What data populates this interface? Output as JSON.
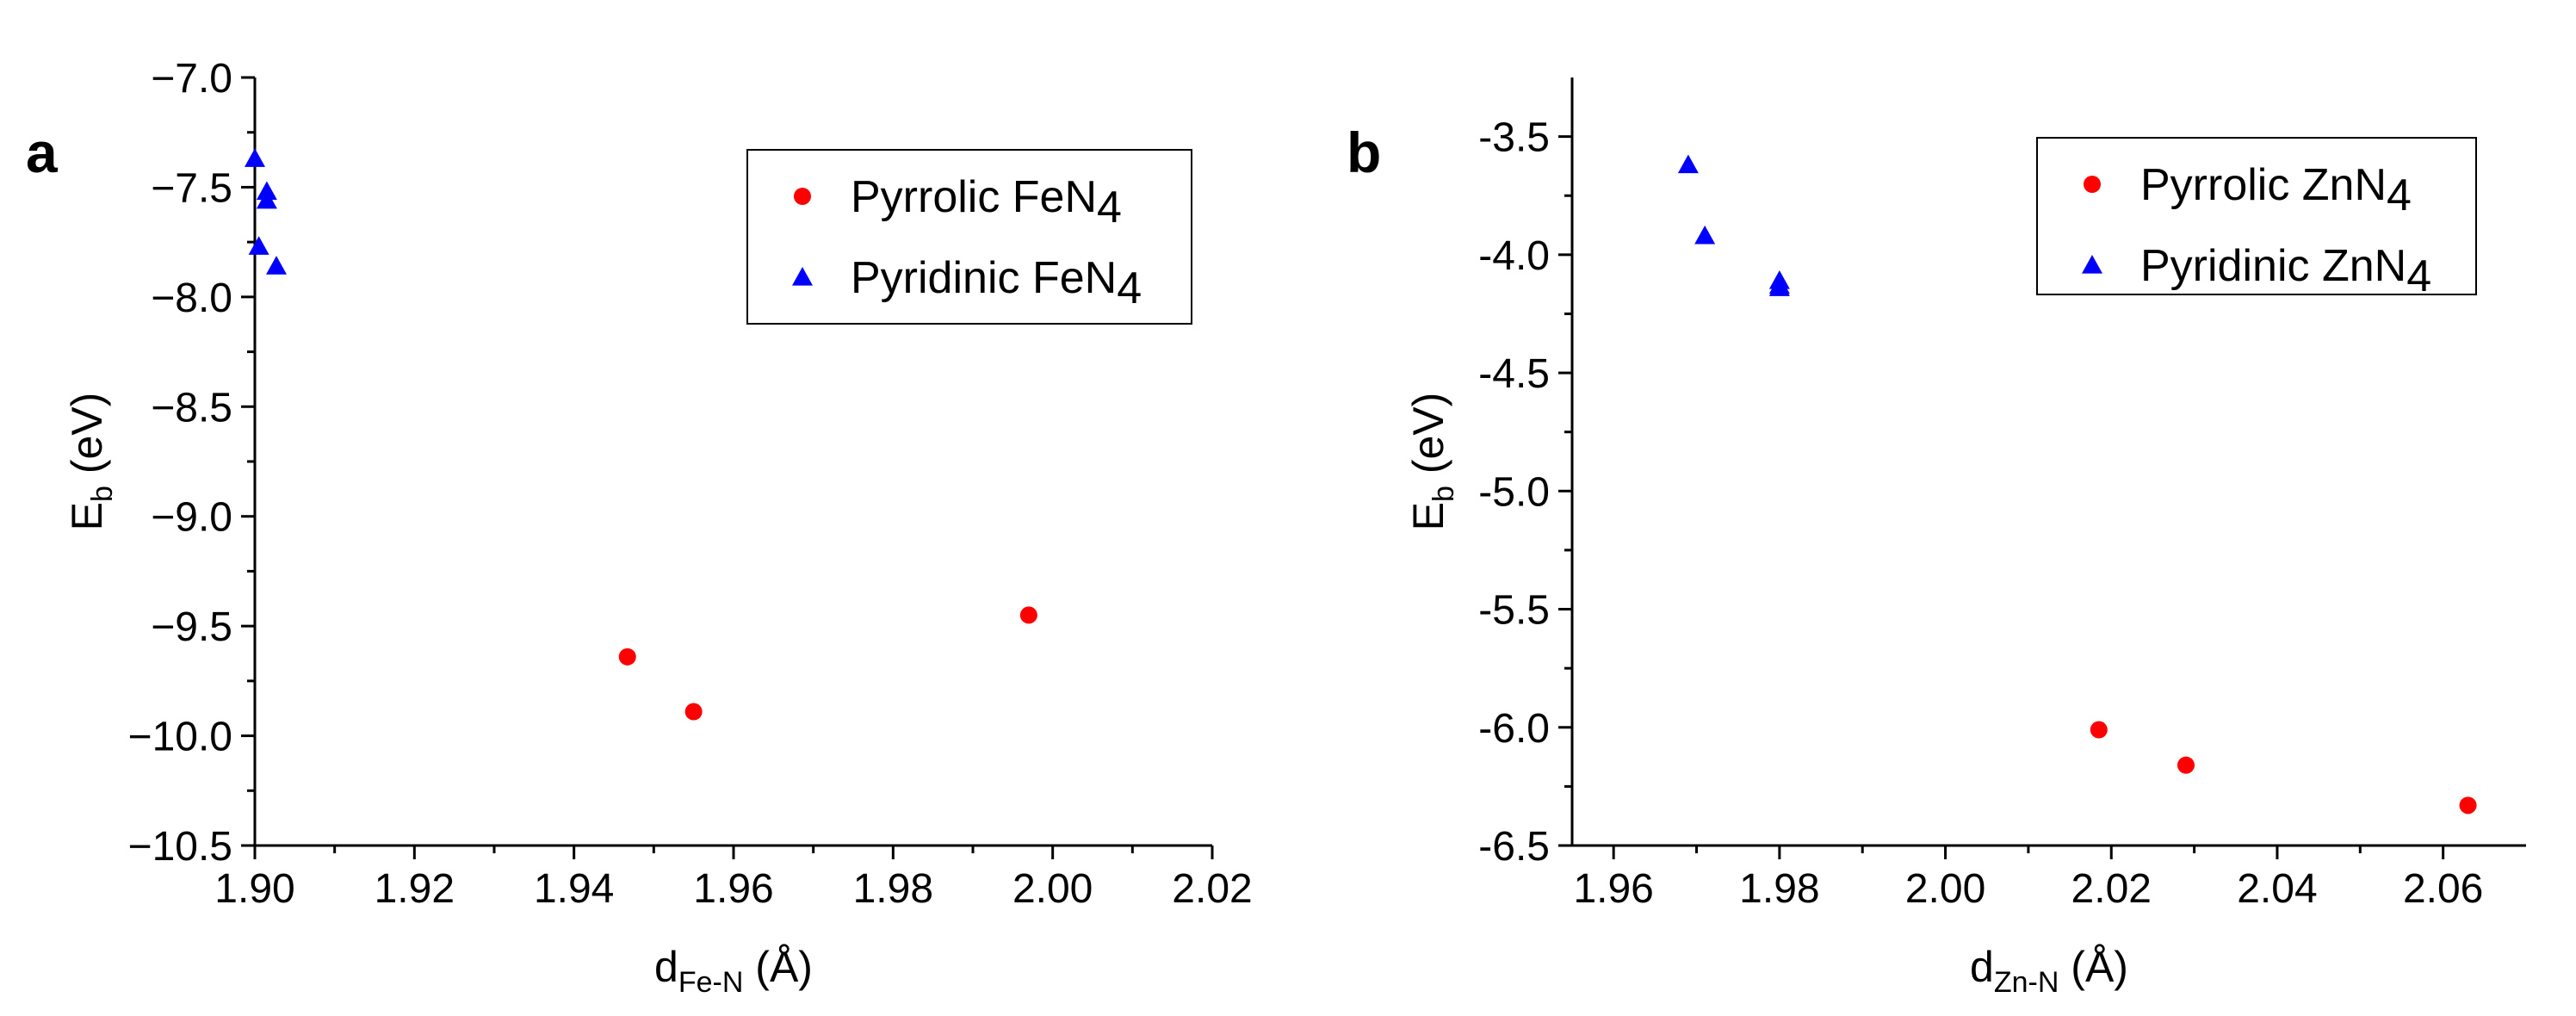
{
  "chart_data": [
    {
      "type": "scatter",
      "panel_label": "a",
      "xlabel": {
        "main": "d",
        "sub": "Fe-N",
        "unit": " (Å)"
      },
      "ylabel": {
        "main": "E",
        "sub": "b",
        "unit": " (eV)"
      },
      "xlim": [
        1.9,
        2.02
      ],
      "ylim": [
        -10.5,
        -7.0
      ],
      "xticks": [
        1.9,
        1.92,
        1.94,
        1.96,
        1.98,
        2.0,
        2.02
      ],
      "xtick_labels": [
        "1.90",
        "1.92",
        "1.94",
        "1.96",
        "1.98",
        "2.00",
        "2.02"
      ],
      "yticks": [
        -7.0,
        -7.5,
        -8.0,
        -8.5,
        -9.0,
        -9.5,
        -10.0,
        -10.5
      ],
      "ytick_labels": [
        "−7.0",
        "−7.5",
        "−8.0",
        "−8.5",
        "−9.0",
        "−9.5",
        "−10.0",
        "−10.5"
      ],
      "legend_position": "top-right",
      "grid": false,
      "series": [
        {
          "name": "Pyrrolic FeN4",
          "label": {
            "main": "Pyrrolic FeN",
            "sub": "4"
          },
          "marker": "circle",
          "color": "#ff0000",
          "points": [
            [
              1.9467,
              -9.64
            ],
            [
              1.955,
              -9.89
            ],
            [
              1.997,
              -9.45
            ]
          ]
        },
        {
          "name": "Pyridinic FeN4",
          "label": {
            "main": "Pyridinic FeN",
            "sub": "4"
          },
          "marker": "triangle",
          "color": "#0000ff",
          "points": [
            [
              1.9,
              -7.37
            ],
            [
              1.9015,
              -7.52
            ],
            [
              1.9015,
              -7.56
            ],
            [
              1.9005,
              -7.77
            ],
            [
              1.9027,
              -7.86
            ]
          ]
        }
      ]
    },
    {
      "type": "scatter",
      "panel_label": "b",
      "xlabel": {
        "main": "d",
        "sub": "Zn-N",
        "unit": " (Å)"
      },
      "ylabel": {
        "main": "E",
        "sub": "b",
        "unit": " (eV)"
      },
      "xlim": [
        1.955,
        2.07
      ],
      "ylim": [
        -6.5,
        -3.25
      ],
      "xticks": [
        1.96,
        1.98,
        2.0,
        2.02,
        2.04,
        2.06
      ],
      "xtick_labels": [
        "1.96",
        "1.98",
        "2.00",
        "2.02",
        "2.04",
        "2.06"
      ],
      "yticks": [
        -3.5,
        -4.0,
        -4.5,
        -5.0,
        -5.5,
        -6.0,
        -6.5
      ],
      "ytick_labels": [
        "-3.5",
        "-4.0",
        "-4.5",
        "-5.0",
        "-5.5",
        "-6.0",
        "-6.5"
      ],
      "legend_position": "top-right",
      "grid": false,
      "series": [
        {
          "name": "Pyrrolic ZnN4",
          "label": {
            "main": "Pyrrolic ZnN",
            "sub": "4"
          },
          "marker": "circle",
          "color": "#ff0000",
          "points": [
            [
              2.0185,
              -6.01
            ],
            [
              2.029,
              -6.16
            ],
            [
              2.063,
              -6.33
            ]
          ]
        },
        {
          "name": "Pyridinic ZnN4",
          "label": {
            "main": "Pyridinic ZnN",
            "sub": "4"
          },
          "marker": "triangle",
          "color": "#0000ff",
          "points": [
            [
              1.969,
              -3.62
            ],
            [
              1.971,
              -3.92
            ],
            [
              1.98,
              -4.11
            ],
            [
              1.98,
              -4.13
            ],
            [
              1.98,
              -4.14
            ]
          ]
        }
      ]
    }
  ]
}
